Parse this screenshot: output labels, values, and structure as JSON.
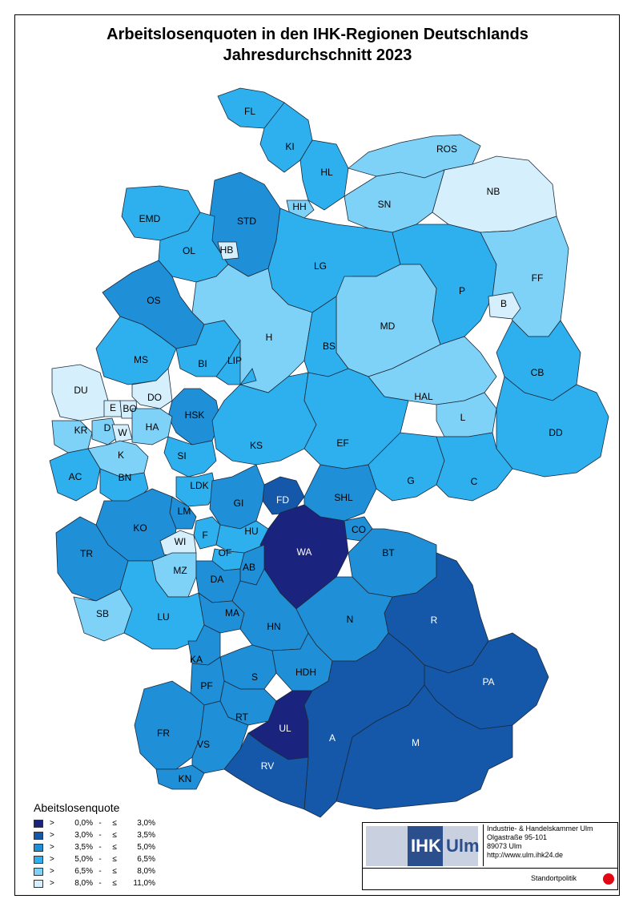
{
  "title_line1": "Arbeitslosenquoten in den IHK-Regionen Deutschlands",
  "title_line2": "Jahresdurchschnitt 2023",
  "legend": {
    "title": "Abeitslosenquote",
    "classes": [
      {
        "gt": ">",
        "lo": "0,0%",
        "dash": "-",
        "le": "≤",
        "hi": "3,0%",
        "color": "#1a237e"
      },
      {
        "gt": ">",
        "lo": "3,0%",
        "dash": "-",
        "le": "≤",
        "hi": "3,5%",
        "color": "#1557a8"
      },
      {
        "gt": ">",
        "lo": "3,5%",
        "dash": "-",
        "le": "≤",
        "hi": "5,0%",
        "color": "#1f8fd8"
      },
      {
        "gt": ">",
        "lo": "5,0%",
        "dash": "-",
        "le": "≤",
        "hi": "6,5%",
        "color": "#2eb0ef"
      },
      {
        "gt": ">",
        "lo": "6,5%",
        "dash": "-",
        "le": "≤",
        "hi": "8,0%",
        "color": "#7fd2f7"
      },
      {
        "gt": ">",
        "lo": "8,0%",
        "dash": "-",
        "le": "≤",
        "hi": "11,0%",
        "color": "#d5effc"
      }
    ]
  },
  "regions": [
    {
      "code": "FL",
      "cls": 3
    },
    {
      "code": "KI",
      "cls": 3
    },
    {
      "code": "HL",
      "cls": 3
    },
    {
      "code": "ROS",
      "cls": 4
    },
    {
      "code": "NB",
      "cls": 5
    },
    {
      "code": "HH",
      "cls": 4
    },
    {
      "code": "SN",
      "cls": 4
    },
    {
      "code": "STD",
      "cls": 2
    },
    {
      "code": "EMD",
      "cls": 3
    },
    {
      "code": "OL",
      "cls": 3
    },
    {
      "code": "HB",
      "cls": 5
    },
    {
      "code": "LG",
      "cls": 3
    },
    {
      "code": "P",
      "cls": 3
    },
    {
      "code": "FF",
      "cls": 4
    },
    {
      "code": "B",
      "cls": 5
    },
    {
      "code": "OS",
      "cls": 2
    },
    {
      "code": "H",
      "cls": 4
    },
    {
      "code": "MD",
      "cls": 4
    },
    {
      "code": "BS",
      "cls": 3
    },
    {
      "code": "MS",
      "cls": 3
    },
    {
      "code": "BI",
      "cls": 3
    },
    {
      "code": "LIP",
      "cls": 3
    },
    {
      "code": "CB",
      "cls": 3
    },
    {
      "code": "DU",
      "cls": 5
    },
    {
      "code": "DO",
      "cls": 5
    },
    {
      "code": "E",
      "cls": 5
    },
    {
      "code": "BO",
      "cls": 5
    },
    {
      "code": "HAL",
      "cls": 4
    },
    {
      "code": "HSK",
      "cls": 2
    },
    {
      "code": "L",
      "cls": 4
    },
    {
      "code": "KR",
      "cls": 4
    },
    {
      "code": "D",
      "cls": 4
    },
    {
      "code": "W",
      "cls": 5
    },
    {
      "code": "HA",
      "cls": 4
    },
    {
      "code": "KS",
      "cls": 3
    },
    {
      "code": "EF",
      "cls": 3
    },
    {
      "code": "DD",
      "cls": 3
    },
    {
      "code": "K",
      "cls": 4
    },
    {
      "code": "SI",
      "cls": 3
    },
    {
      "code": "AC",
      "cls": 3
    },
    {
      "code": "BN",
      "cls": 3
    },
    {
      "code": "LDK",
      "cls": 3
    },
    {
      "code": "G",
      "cls": 3
    },
    {
      "code": "C",
      "cls": 3
    },
    {
      "code": "FD",
      "cls": 1
    },
    {
      "code": "SHL",
      "cls": 2
    },
    {
      "code": "GI",
      "cls": 2
    },
    {
      "code": "LM",
      "cls": 2
    },
    {
      "code": "CO",
      "cls": 2
    },
    {
      "code": "KO",
      "cls": 2
    },
    {
      "code": "F",
      "cls": 3
    },
    {
      "code": "HU",
      "cls": 3
    },
    {
      "code": "WI",
      "cls": 5
    },
    {
      "code": "WA",
      "cls": 0
    },
    {
      "code": "BT",
      "cls": 2
    },
    {
      "code": "TR",
      "cls": 2
    },
    {
      "code": "OF",
      "cls": 3
    },
    {
      "code": "MZ",
      "cls": 4
    },
    {
      "code": "AB",
      "cls": 2
    },
    {
      "code": "DA",
      "cls": 2
    },
    {
      "code": "MA",
      "cls": 2
    },
    {
      "code": "R",
      "cls": 1
    },
    {
      "code": "SB",
      "cls": 4
    },
    {
      "code": "LU",
      "cls": 3
    },
    {
      "code": "HN",
      "cls": 2
    },
    {
      "code": "N",
      "cls": 2
    },
    {
      "code": "KA",
      "cls": 2
    },
    {
      "code": "S",
      "cls": 2
    },
    {
      "code": "HDH",
      "cls": 2
    },
    {
      "code": "PA",
      "cls": 1
    },
    {
      "code": "PF",
      "cls": 2
    },
    {
      "code": "RT",
      "cls": 2
    },
    {
      "code": "UL",
      "cls": 0
    },
    {
      "code": "FR",
      "cls": 2
    },
    {
      "code": "A",
      "cls": 1
    },
    {
      "code": "M",
      "cls": 1
    },
    {
      "code": "VS",
      "cls": 2
    },
    {
      "code": "RV",
      "cls": 1
    },
    {
      "code": "KN",
      "cls": 2
    }
  ],
  "ihk": {
    "logo_ihk": "IHK",
    "logo_ulm": "Ulm",
    "addr1": "Industrie- & Handelskammer Ulm",
    "addr2": "Olgastraße 95-101",
    "addr3": "89073 Ulm",
    "addr4": "http://www.ulm.ihk24.de",
    "dept": "Standortpolitik"
  }
}
